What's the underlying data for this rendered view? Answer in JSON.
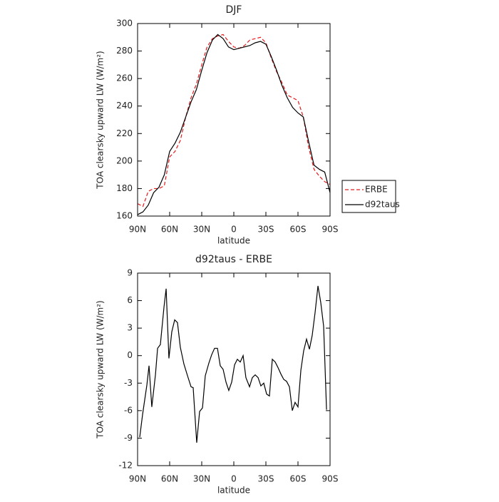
{
  "chart_data": [
    {
      "type": "line",
      "title": "DJF",
      "xlabel": "latitude",
      "ylabel": "TOA clearsky upward LW (W/m²)",
      "x": [
        90,
        85,
        80,
        75,
        70,
        65,
        60,
        55,
        50,
        45,
        40,
        35,
        30,
        25,
        20,
        15,
        10,
        5,
        0,
        -5,
        -10,
        -15,
        -20,
        -25,
        -30,
        -35,
        -40,
        -45,
        -50,
        -55,
        -60,
        -65,
        -70,
        -75,
        -80,
        -85,
        -90
      ],
      "series": [
        {
          "name": "ERBE",
          "color": "#e41a1c",
          "line_style": "dashed",
          "values": [
            169,
            167,
            178,
            180,
            180,
            182,
            203,
            207,
            215,
            232,
            246,
            256,
            270,
            283,
            289,
            291,
            292,
            287,
            283,
            282,
            284,
            288,
            289,
            290,
            286,
            275,
            265,
            257,
            248,
            246,
            244,
            232,
            210,
            194,
            189,
            185,
            183
          ]
        },
        {
          "name": "d92taus",
          "color": "#000000",
          "line_style": "solid",
          "values": [
            161,
            163,
            168,
            177,
            181,
            190,
            207,
            213,
            221,
            232,
            243,
            252,
            266,
            279,
            288,
            292,
            289,
            283,
            281,
            282,
            283,
            284,
            286,
            287,
            285,
            276,
            266,
            255,
            246,
            239,
            235,
            232,
            214,
            197,
            194,
            192,
            177
          ]
        }
      ],
      "xlim": [
        90,
        -90
      ],
      "xticks": [
        {
          "value": 90,
          "label": "90N"
        },
        {
          "value": 60,
          "label": "60N"
        },
        {
          "value": 30,
          "label": "30N"
        },
        0,
        {
          "value": -30,
          "label": "30S"
        },
        {
          "value": -60,
          "label": "60S"
        },
        {
          "value": -90,
          "label": "90S"
        }
      ],
      "ylim": [
        160,
        300
      ],
      "yticks": [
        160,
        180,
        200,
        220,
        240,
        260,
        280,
        300
      ],
      "legend": "right"
    },
    {
      "type": "line",
      "title": "d92taus - ERBE",
      "xlabel": "latitude",
      "ylabel": "TOA clearsky upward LW (W/m²)",
      "x": [
        88,
        85.3,
        81.3,
        79.3,
        76.7,
        73.3,
        71.3,
        68.7,
        65.3,
        63.3,
        60.7,
        58,
        55.3,
        52.7,
        50,
        46.7,
        43.3,
        40,
        38,
        34.7,
        32,
        29.3,
        26.7,
        23.3,
        20.7,
        18,
        15.3,
        12.7,
        10,
        7.3,
        4.7,
        2,
        -0.7,
        -3.3,
        -6,
        -8.7,
        -11.3,
        -14.7,
        -17.3,
        -20,
        -22.7,
        -25.3,
        -28,
        -30.7,
        -33.3,
        -36,
        -38.7,
        -41.3,
        -44,
        -46.7,
        -49.3,
        -52,
        -54.7,
        -57.3,
        -60,
        -62.7,
        -65.3,
        -68,
        -70.7,
        -73.3,
        -76,
        -78.7,
        -81.3,
        -84,
        -86.7
      ],
      "series": [
        {
          "name": "d92taus - ERBE",
          "color": "#000000",
          "line_style": "solid",
          "values": [
            -8.9,
            -6.4,
            -3.2,
            -1.1,
            -5.6,
            -2.1,
            0.8,
            1.2,
            5.3,
            7.3,
            -0.3,
            2.6,
            3.9,
            3.6,
            0.9,
            -0.9,
            -2.2,
            -3.4,
            -3.5,
            -9.5,
            -6.1,
            -5.7,
            -2.2,
            -0.8,
            0.1,
            0.8,
            0.8,
            -1.1,
            -1.5,
            -2.9,
            -3.8,
            -2.9,
            -1.0,
            -0.4,
            -0.7,
            0,
            -2.4,
            -3.4,
            -2.4,
            -2.1,
            -2.4,
            -3.3,
            -3.0,
            -4.2,
            -4.4,
            -0.4,
            -0.7,
            -1.3,
            -2.0,
            -2.6,
            -2.8,
            -3.4,
            -6.0,
            -5.1,
            -5.6,
            -1.6,
            0.5,
            1.8,
            0.7,
            2.2,
            4.7,
            7.6,
            5.8,
            3.2,
            -5.9
          ]
        }
      ],
      "xlim": [
        90,
        -90
      ],
      "xticks": [
        {
          "value": 90,
          "label": "90N"
        },
        {
          "value": 60,
          "label": "60N"
        },
        {
          "value": 30,
          "label": "30N"
        },
        0,
        {
          "value": -30,
          "label": "30S"
        },
        {
          "value": -60,
          "label": "60S"
        },
        {
          "value": -90,
          "label": "90S"
        }
      ],
      "ylim": [
        -12,
        9
      ],
      "yticks": [
        -12,
        -9,
        -6,
        -3,
        0,
        3,
        6,
        9
      ]
    }
  ]
}
